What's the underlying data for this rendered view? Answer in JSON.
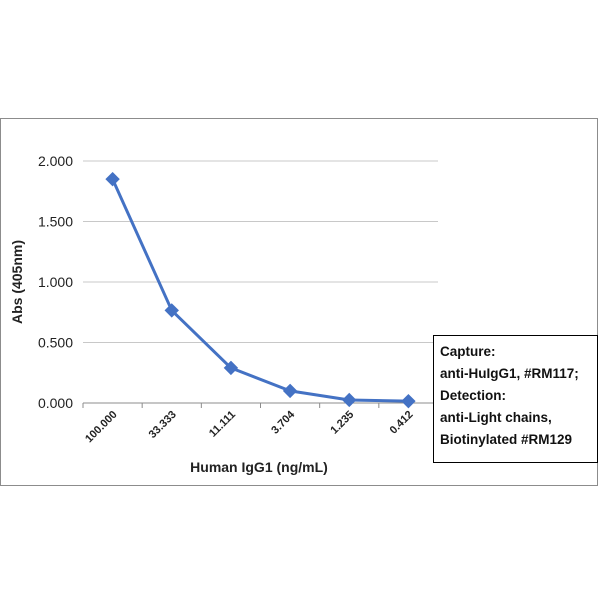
{
  "chart_data": {
    "type": "line",
    "title": "",
    "xlabel": "Human IgG1 (ng/mL)",
    "ylabel": "Abs (405nm)",
    "categories": [
      "100.000",
      "33.333",
      "11.111",
      "3.704",
      "1.235",
      "0.412"
    ],
    "series": [
      {
        "values": [
          1.85,
          0.765,
          0.29,
          0.1,
          0.025,
          0.015
        ],
        "color": "#4472C4",
        "marker": "diamond"
      }
    ],
    "yticks": [
      "0.000",
      "0.500",
      "1.000",
      "1.500",
      "2.000"
    ],
    "ylim": [
      0,
      2.0
    ],
    "grid": "horizontal",
    "legend_placement": "right",
    "annotation_lines": [
      "Capture:",
      "anti-HuIgG1, #RM117;",
      "Detection:",
      "anti-Light chains,",
      "Biotinylated #RM129"
    ]
  }
}
